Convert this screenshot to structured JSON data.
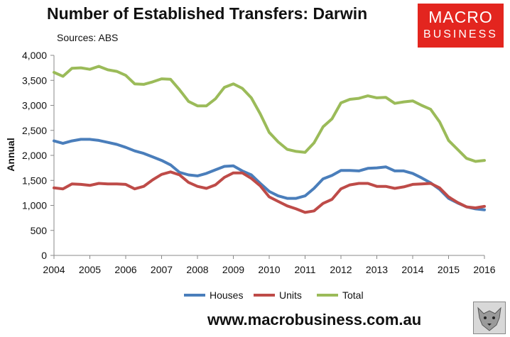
{
  "header": {
    "title": "Number of Established Transfers: Darwin",
    "subtitle": "Sources: ABS"
  },
  "logo": {
    "line1": "MACRO",
    "line2": "BUSINESS",
    "bg": "#e3251f"
  },
  "footer": {
    "url": "www.macrobusiness.com.au"
  },
  "chart_data": {
    "type": "line",
    "title": "Number of Established Transfers: Darwin",
    "subtitle": "Sources: ABS",
    "xlabel": "",
    "ylabel": "Annual",
    "xlim": [
      2004,
      2016
    ],
    "ylim": [
      0,
      4000
    ],
    "x_ticks": [
      2004,
      2005,
      2006,
      2007,
      2008,
      2009,
      2010,
      2011,
      2012,
      2013,
      2014,
      2015,
      2016
    ],
    "y_ticks": [
      0,
      500,
      1000,
      1500,
      2000,
      2500,
      3000,
      3500,
      4000
    ],
    "y_tick_labels": [
      "0",
      "500",
      "1,000",
      "1,500",
      "2,000",
      "2,500",
      "3,000",
      "3,500",
      "4,000"
    ],
    "grid": false,
    "legend_position": "bottom",
    "x": [
      2004.0,
      2004.25,
      2004.5,
      2004.75,
      2005.0,
      2005.25,
      2005.5,
      2005.75,
      2006.0,
      2006.25,
      2006.5,
      2006.75,
      2007.0,
      2007.25,
      2007.5,
      2007.75,
      2008.0,
      2008.25,
      2008.5,
      2008.75,
      2009.0,
      2009.25,
      2009.5,
      2009.75,
      2010.0,
      2010.25,
      2010.5,
      2010.75,
      2011.0,
      2011.25,
      2011.5,
      2011.75,
      2012.0,
      2012.25,
      2012.5,
      2012.75,
      2013.0,
      2013.25,
      2013.5,
      2013.75,
      2014.0,
      2014.25,
      2014.5,
      2014.75,
      2015.0,
      2015.25,
      2015.5,
      2015.75,
      2016.0
    ],
    "series": [
      {
        "name": "Houses",
        "color": "#4a7ebb",
        "values": [
          2290,
          2240,
          2290,
          2320,
          2320,
          2300,
          2260,
          2220,
          2160,
          2090,
          2040,
          1970,
          1900,
          1810,
          1660,
          1610,
          1590,
          1640,
          1710,
          1780,
          1790,
          1690,
          1610,
          1440,
          1280,
          1190,
          1140,
          1140,
          1190,
          1340,
          1530,
          1600,
          1700,
          1700,
          1690,
          1740,
          1750,
          1770,
          1690,
          1690,
          1640,
          1550,
          1450,
          1320,
          1140,
          1050,
          970,
          930,
          910
        ]
      },
      {
        "name": "Units",
        "color": "#be4b48",
        "values": [
          1350,
          1330,
          1430,
          1420,
          1400,
          1440,
          1430,
          1430,
          1420,
          1330,
          1380,
          1510,
          1620,
          1670,
          1610,
          1460,
          1380,
          1340,
          1410,
          1560,
          1650,
          1650,
          1540,
          1390,
          1170,
          1080,
          990,
          930,
          860,
          890,
          1040,
          1120,
          1330,
          1410,
          1440,
          1440,
          1380,
          1380,
          1340,
          1370,
          1420,
          1430,
          1440,
          1350,
          1170,
          1060,
          970,
          950,
          980
        ]
      },
      {
        "name": "Total",
        "color": "#9bbb59",
        "values": [
          3660,
          3580,
          3740,
          3750,
          3720,
          3780,
          3710,
          3680,
          3600,
          3430,
          3420,
          3470,
          3530,
          3520,
          3310,
          3080,
          2990,
          2990,
          3130,
          3360,
          3430,
          3340,
          3150,
          2830,
          2460,
          2270,
          2120,
          2080,
          2060,
          2250,
          2570,
          2730,
          3050,
          3120,
          3140,
          3190,
          3150,
          3160,
          3040,
          3070,
          3090,
          3000,
          2920,
          2670,
          2300,
          2120,
          1940,
          1880,
          1900
        ]
      }
    ]
  }
}
